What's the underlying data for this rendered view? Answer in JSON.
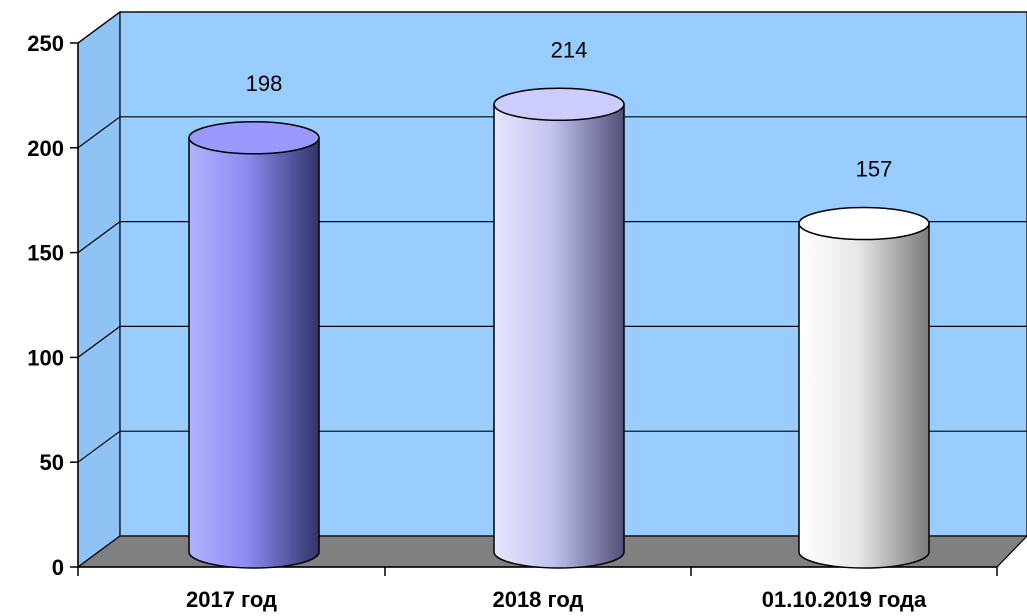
{
  "chart_data": {
    "type": "bar",
    "categories": [
      "2017 год",
      "2018 год",
      "01.10.2019 года"
    ],
    "values": [
      198,
      214,
      157
    ],
    "data_labels": [
      "198",
      "214",
      "157"
    ],
    "yticks": [
      "0",
      "50",
      "100",
      "150",
      "200",
      "250"
    ],
    "ylim": [
      0,
      250
    ],
    "grid": true,
    "title": "",
    "xlabel": "",
    "ylabel": "",
    "colors": {
      "wall": "#99ccff",
      "floor": "#808080",
      "side_wall": "#8fc3f5",
      "bar_fill": [
        "#9999ff",
        "#ccccff",
        "#ffffff"
      ],
      "bar_shade": [
        "#3a3a6e",
        "#55557a",
        "#8a8a8a"
      ]
    }
  }
}
